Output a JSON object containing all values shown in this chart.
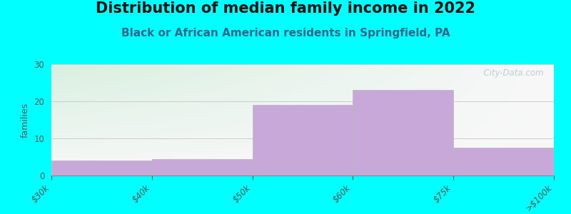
{
  "title": "Distribution of median family income in 2022",
  "subtitle": "Black or African American residents in Springfield, PA",
  "x_tick_labels": [
    "$30k",
    "$40k",
    "$50k",
    "$60k",
    "$75k",
    ">$100k"
  ],
  "bar_heights": [
    4,
    4.5,
    19,
    23,
    7.5
  ],
  "bar_color": "#c8a8d8",
  "bar_edge_color": "#b8b8b8",
  "bg_color": "#00ffff",
  "plot_bg_top_left": "#d8f0e0",
  "plot_bg_bottom_right": "#f8f8f8",
  "ylabel": "families",
  "ylim": [
    0,
    30
  ],
  "yticks": [
    0,
    10,
    20,
    30
  ],
  "grid_color": "#cccccc",
  "title_fontsize": 15,
  "subtitle_fontsize": 11,
  "subtitle_color": "#336688",
  "watermark_text": "  City-Data.com",
  "watermark_color": "#b0c8d0",
  "tick_label_color": "#555555",
  "tick_label_fontsize": 8.5
}
